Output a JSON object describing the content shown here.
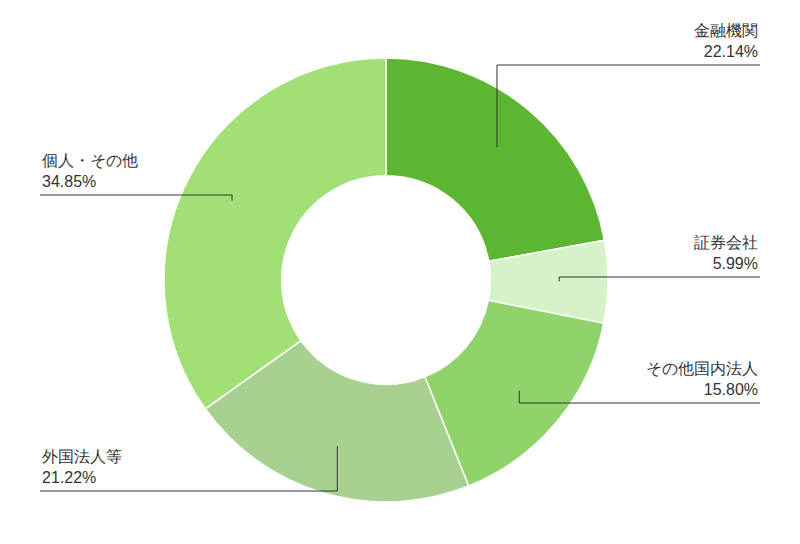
{
  "chart_data": {
    "type": "pie",
    "categories": [
      "金融機関",
      "証券会社",
      "その他国内法人",
      "外国法人等",
      "個人・その他"
    ],
    "values": [
      22.14,
      5.99,
      15.8,
      21.22,
      34.85
    ],
    "value_labels": [
      "22.14%",
      "5.99%",
      "15.80%",
      "21.22%",
      "34.85%"
    ],
    "colors": [
      "#5db632",
      "#d6f2c8",
      "#8fd36a",
      "#a8d191",
      "#a2e077"
    ],
    "data_labels": true
  }
}
